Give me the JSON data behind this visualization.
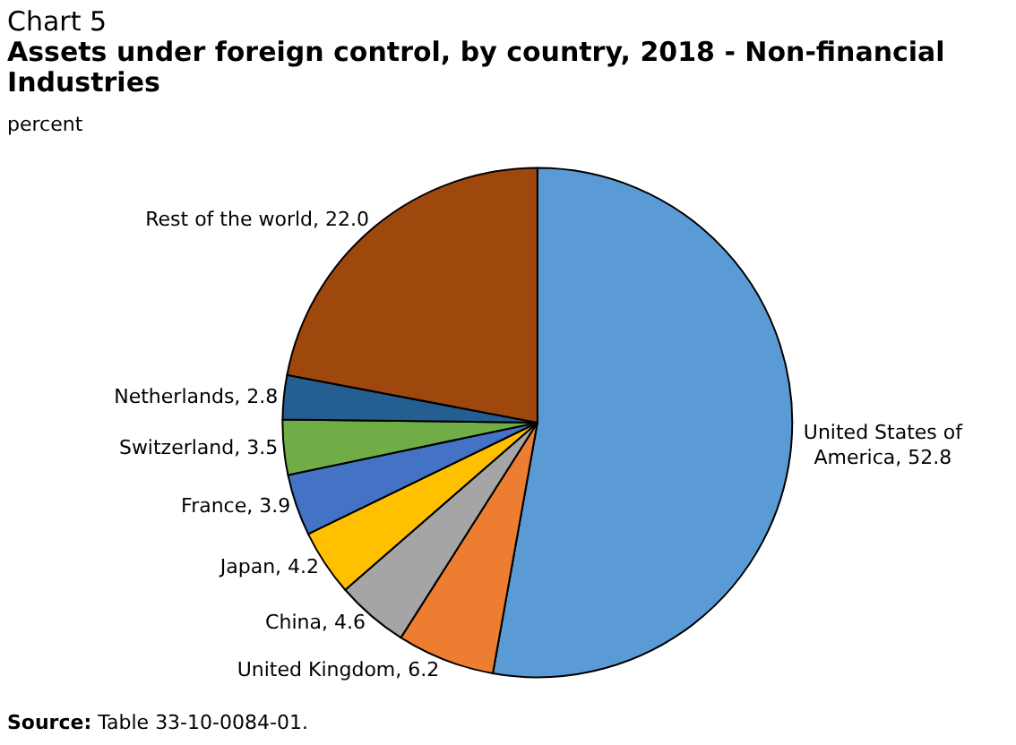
{
  "chart_data": {
    "type": "pie",
    "title": "Chart 5",
    "subtitle": "Assets under foreign control, by country, 2018 - Non-financial Industries",
    "annotations": [
      "percent",
      "Source: Table 33-10-0084-01."
    ],
    "categories": [
      "United States of America",
      "United Kingdom",
      "China",
      "Japan",
      "France",
      "Switzerland",
      "Netherlands",
      "Rest of the world"
    ],
    "values": [
      52.8,
      6.2,
      4.6,
      4.2,
      3.9,
      3.5,
      2.8,
      22.0
    ],
    "value_labels": [
      "52.8",
      "6.2",
      "4.6",
      "4.2",
      "3.9",
      "3.5",
      "2.8",
      "22.0"
    ],
    "colors": [
      "#5b9bd5",
      "#ed7d31",
      "#a5a5a5",
      "#ffc000",
      "#4472c4",
      "#70ad47",
      "#255e91",
      "#9e480e"
    ],
    "legend": false
  }
}
